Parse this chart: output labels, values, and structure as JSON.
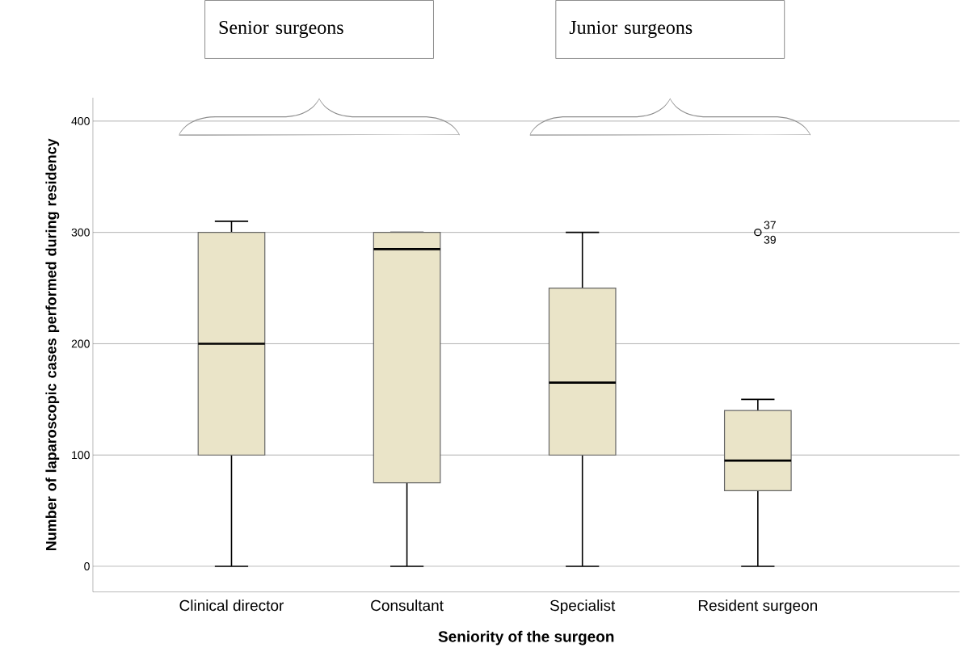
{
  "chart_data": {
    "type": "box",
    "categories": [
      "Clinical director",
      "Consultant",
      "Specialist",
      "Resident surgeon"
    ],
    "boxes": [
      {
        "low": 0,
        "q1": 100,
        "median": 200,
        "q3": 300,
        "high": 310
      },
      {
        "low": 0,
        "q1": 75,
        "median": 285,
        "q3": 300,
        "high": 300
      },
      {
        "low": 0,
        "q1": 100,
        "median": 165,
        "q3": 250,
        "high": 300
      },
      {
        "low": 0,
        "q1": 68,
        "median": 95,
        "q3": 140,
        "high": 150,
        "outliers": [
          300
        ]
      }
    ],
    "color": "#eae4c8",
    "xlabel": "Seniority of the surgeon",
    "ylabel": "Number of laparoscopic cases performed during residency",
    "ylim": [
      -23,
      421
    ],
    "yticks": [
      0,
      100,
      200,
      300,
      400
    ],
    "grid": "y",
    "annotations": [
      "Senior surgeons",
      "Junior surgeons",
      "37",
      "39"
    ]
  }
}
